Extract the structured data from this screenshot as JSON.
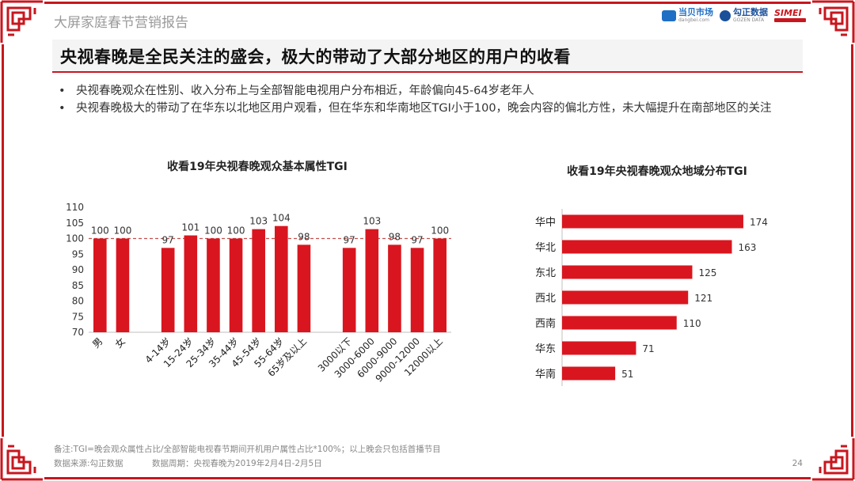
{
  "report_name": "大屏家庭春节营销报告",
  "logos": [
    {
      "name": "当贝市场",
      "sub": "dangbei.com",
      "color": "#1f6fc4"
    },
    {
      "name": "勾正数据",
      "sub": "GOZEN DATA",
      "color": "#1a4f9a"
    },
    {
      "name": "SIMEI",
      "sub": "",
      "color": "#c8161e"
    }
  ],
  "headline": "央视春晚是全民关注的盛会，极大的带动了大部分地区的用户的收看",
  "bullets": [
    "央视春晚观众在性别、收入分布上与全部智能电视用户分布相近，年龄偏向45-64岁老年人",
    "央视春晚极大的带动了在华东以北地区用户观看，但在华东和华南地区TGI小于100，晚会内容的偏北方性，未大幅提升在南部地区的关注"
  ],
  "colors": {
    "accent": "#c8161e",
    "bar": "#d9161f",
    "reference": "#c0504d"
  },
  "chart_data": [
    {
      "type": "bar",
      "title": "收看19年央视春晚观众基本属性TGI",
      "categories": [
        "男",
        "女",
        "",
        "4-14岁",
        "15-24岁",
        "25-34岁",
        "35-44岁",
        "45-54岁",
        "55-64岁",
        "65岁及以上",
        "",
        "3000以下",
        "3000-6000",
        "6000-9000",
        "9000-12000",
        "12000以上"
      ],
      "values": [
        100,
        100,
        null,
        97,
        101,
        100,
        100,
        103,
        104,
        98,
        null,
        97,
        103,
        98,
        97,
        100
      ],
      "ylim": [
        70,
        110
      ],
      "yticks": [
        70,
        75,
        80,
        85,
        90,
        95,
        100,
        105,
        110
      ],
      "reference_line": 100,
      "grid": false,
      "legend": "none"
    },
    {
      "type": "bar",
      "orientation": "horizontal",
      "title": "收看19年央视春晚观众地域分布TGI",
      "categories": [
        "华中",
        "华北",
        "东北",
        "西北",
        "西南",
        "华东",
        "华南"
      ],
      "values": [
        174,
        163,
        125,
        121,
        110,
        71,
        51
      ],
      "grid": false,
      "legend": "none"
    }
  ],
  "footnote": "备注:TGI=晚会观众属性占比/全部智能电视春节期间开机用户属性占比*100%；以上晚会只包括首播节目",
  "source": "数据来源:勾正数据",
  "period": "数据周期：央视春晚为2019年2月4日-2月5日",
  "page_number": "24"
}
